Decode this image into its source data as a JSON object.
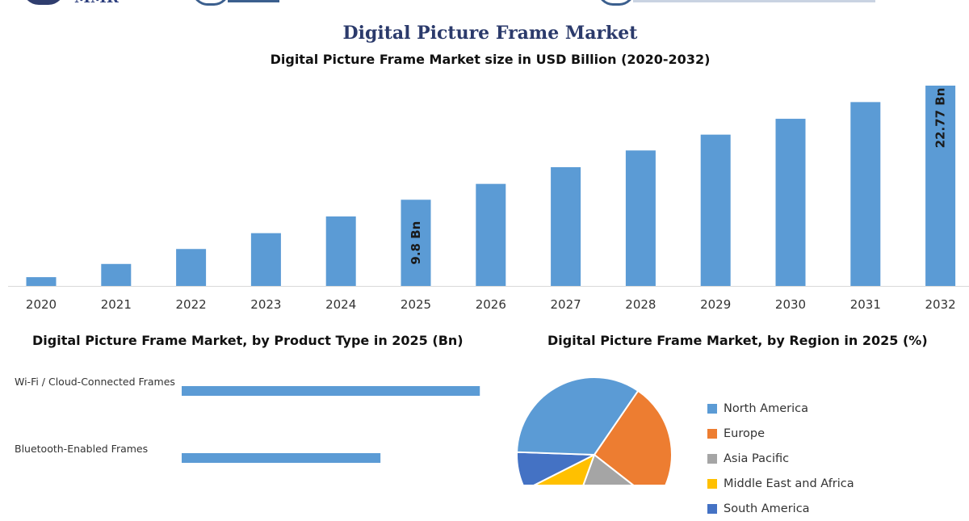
{
  "header": {
    "logo_text": "MMR",
    "title": "Digital Picture Frame Market"
  },
  "colors": {
    "bar": "#5b9bd5",
    "title": "#2b3a6b"
  },
  "chart_data": [
    {
      "type": "bar",
      "title": "Digital Picture Frame Market size in USD Billion (2020-2032)",
      "categories": [
        "2020",
        "2021",
        "2022",
        "2023",
        "2024",
        "2025",
        "2026",
        "2027",
        "2028",
        "2029",
        "2030",
        "2031",
        "2032"
      ],
      "values": [
        1.0,
        2.5,
        4.2,
        6.0,
        7.9,
        9.8,
        11.6,
        13.5,
        15.4,
        17.2,
        19.0,
        20.9,
        22.77
      ],
      "data_labels": [
        {
          "category": "2025",
          "text": "9.8 Bn"
        },
        {
          "category": "2032",
          "text": "22.77 Bn"
        }
      ],
      "ylim": [
        0,
        22.77
      ],
      "grid": false,
      "legend": "none"
    },
    {
      "type": "bar",
      "orientation": "horizontal",
      "title": "Digital Picture Frame Market, by Product Type in 2025 (Bn)",
      "categories": [
        "Wi-Fi / Cloud-Connected Frames",
        "Bluetooth-Enabled Frames"
      ],
      "values": [
        6.0,
        4.0
      ],
      "xlim": [
        0,
        6.5
      ],
      "grid": false,
      "legend": "none"
    },
    {
      "type": "pie",
      "title": "Digital Picture Frame Market, by Region in 2025 (%)",
      "slices": [
        {
          "label": "North America",
          "value": 34,
          "color": "#5b9bd5"
        },
        {
          "label": "Europe",
          "value": 26,
          "color": "#ed7d31"
        },
        {
          "label": "Asia Pacific",
          "value": 20,
          "color": "#a5a5a5"
        },
        {
          "label": "Middle East and Africa",
          "value": 12,
          "color": "#ffc000"
        },
        {
          "label": "South America",
          "value": 8,
          "color": "#4472c4"
        }
      ],
      "legend": "right"
    }
  ]
}
